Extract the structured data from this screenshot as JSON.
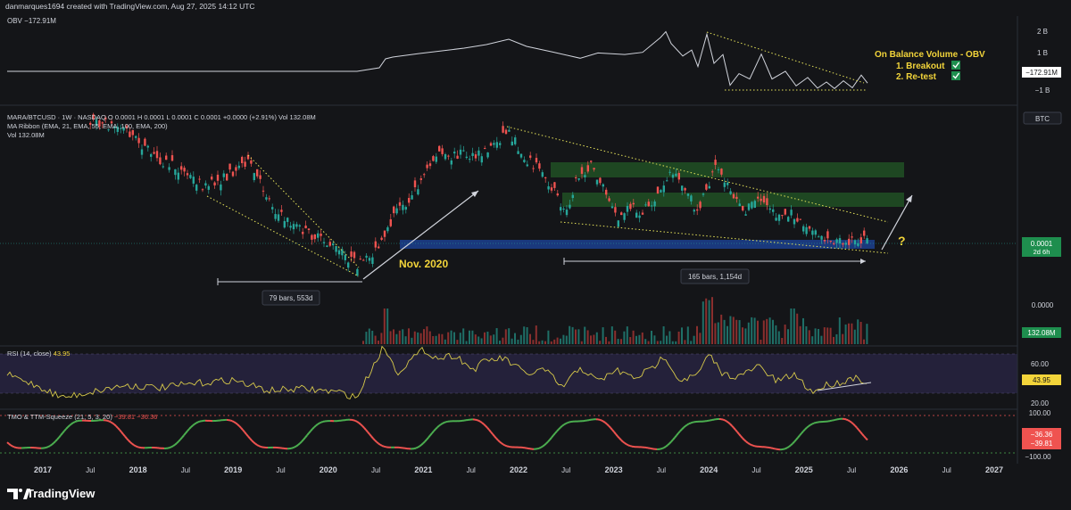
{
  "header": {
    "credit": "danmarques1694 created with TradingView.com, Aug 27, 2025 14:12 UTC"
  },
  "brand": {
    "name": "TradingView",
    "logo_icon": "tradingview-logo-icon"
  },
  "colors": {
    "background": "#141518",
    "price_line": "#d1d4dc",
    "candle_up": "#26a69a",
    "candle_down": "#ef5350",
    "trendline": "#e6e35a",
    "accent_yellow": "#f2d43a",
    "support_band": "#1b3f8f",
    "resistance_zone": "#1f4d23",
    "rsi_band": "#2a2545",
    "rsi_line": "#d7c94a",
    "tmo_up": "#4caf50",
    "tmo_down": "#ef5350",
    "label_green": "#1e8e4e"
  },
  "obv_panel": {
    "label": "OBV",
    "value": "−172.91M",
    "axis_ticks": [
      "2 B",
      "1 B",
      "−1 B"
    ],
    "last_value_tag": "−172.91M",
    "annotation_title": "On Balance Volume - OBV",
    "checklist": [
      {
        "text": "1. Breakout",
        "checked": true
      },
      {
        "text": "2. Re-test",
        "checked": true
      }
    ]
  },
  "price_panel": {
    "symbol_line": "MARA/BTCUSD · 1W · NASDAQ  O 0.0001  H 0.0001  L 0.0001  C 0.0001  +0.0000 (+2.91%)  Vol 132.08M",
    "indicator_line": "MA Ribbon (EMA, 21, EMA, 55, EMA, 100, EMA, 200)",
    "vol_line": "Vol  132.08M",
    "currency_tag": "BTC",
    "price_axis_label": "0.0000",
    "last_price_tag": "0.0001",
    "countdown_tag": "2d 6h",
    "volume_tag": "132.08M",
    "annotations": {
      "nov_2020": "Nov. 2020",
      "question": "?",
      "range1": "79 bars, 553d",
      "range2": "165 bars, 1,154d"
    }
  },
  "rsi_panel": {
    "label": "RSI (14, close)",
    "value": "43.95",
    "axis_ticks": [
      "60.00",
      "20.00"
    ],
    "last_value_tag": "43.95"
  },
  "tmo_panel": {
    "label": "TMO & TTM-Squeeze (21, 5, 3, 20)",
    "values": [
      "−39.81",
      "−36.36"
    ],
    "axis_ticks": [
      "100.00",
      "−100.00"
    ],
    "value_tags": [
      "−36.36",
      "−39.81"
    ]
  },
  "time_axis": {
    "labels": [
      "2017",
      "Jul",
      "2018",
      "Jul",
      "2019",
      "Jul",
      "2020",
      "Jul",
      "2021",
      "Jul",
      "2022",
      "Jul",
      "2023",
      "Jul",
      "2024",
      "Jul",
      "2025",
      "Jul",
      "2026",
      "Jul",
      "2027"
    ]
  },
  "chart_data": [
    {
      "type": "line",
      "title": "OBV",
      "x_range": [
        "2017",
        "2025-08"
      ],
      "y_ticks": [
        "2 B",
        "1 B",
        "−1 B"
      ],
      "last_value": "−172.91M",
      "grid": false
    },
    {
      "type": "candlestick",
      "title": "MARA/BTCUSD · 1W · NASDAQ",
      "x_range": [
        "2017",
        "2027"
      ],
      "last_price": "0.0001",
      "change": "+0.0000 (+2.91%)",
      "volume": "132.08M",
      "annotations": [
        "Nov. 2020",
        "79 bars, 553d",
        "165 bars, 1,154d",
        "?"
      ],
      "grid": false
    },
    {
      "type": "line",
      "title": "RSI (14, close)",
      "ylim": [
        20,
        60
      ],
      "last_value": 43.95,
      "grid": false
    },
    {
      "type": "line",
      "title": "TMO & TTM-Squeeze (21, 5, 3, 20)",
      "ylim": [
        -100,
        100
      ],
      "last_values": [
        -39.81,
        -36.36
      ],
      "grid": false
    }
  ]
}
